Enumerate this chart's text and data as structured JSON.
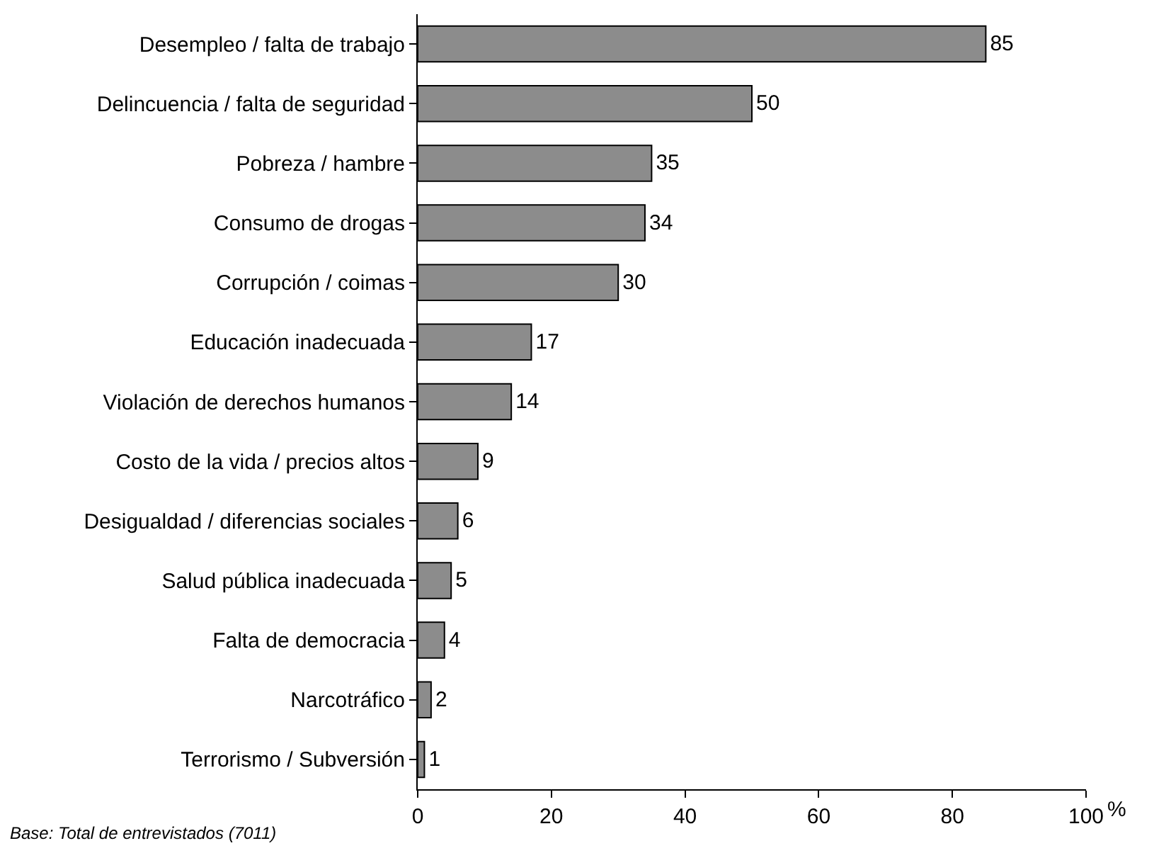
{
  "chart_data": {
    "type": "bar",
    "orientation": "horizontal",
    "categories": [
      "Desempleo / falta de trabajo",
      "Delincuencia / falta de seguridad",
      "Pobreza / hambre",
      "Consumo de drogas",
      "Corrupción / coimas",
      "Educación inadecuada",
      "Violación de derechos humanos",
      "Costo de la vida / precios altos",
      "Desigualdad / diferencias sociales",
      "Salud pública inadecuada",
      "Falta de democracia",
      "Narcotráfico",
      "Terrorismo / Subversión"
    ],
    "values": [
      85,
      50,
      35,
      34,
      30,
      17,
      14,
      9,
      6,
      5,
      4,
      2,
      1
    ],
    "color": "#8c8c8c",
    "xlim": [
      0,
      100
    ],
    "xticks": [
      0,
      20,
      40,
      60,
      80,
      100
    ],
    "xlabel": "%",
    "data_labels": true,
    "legend": false,
    "annotations": [
      "Base: Total de entrevistados (7011)"
    ]
  }
}
